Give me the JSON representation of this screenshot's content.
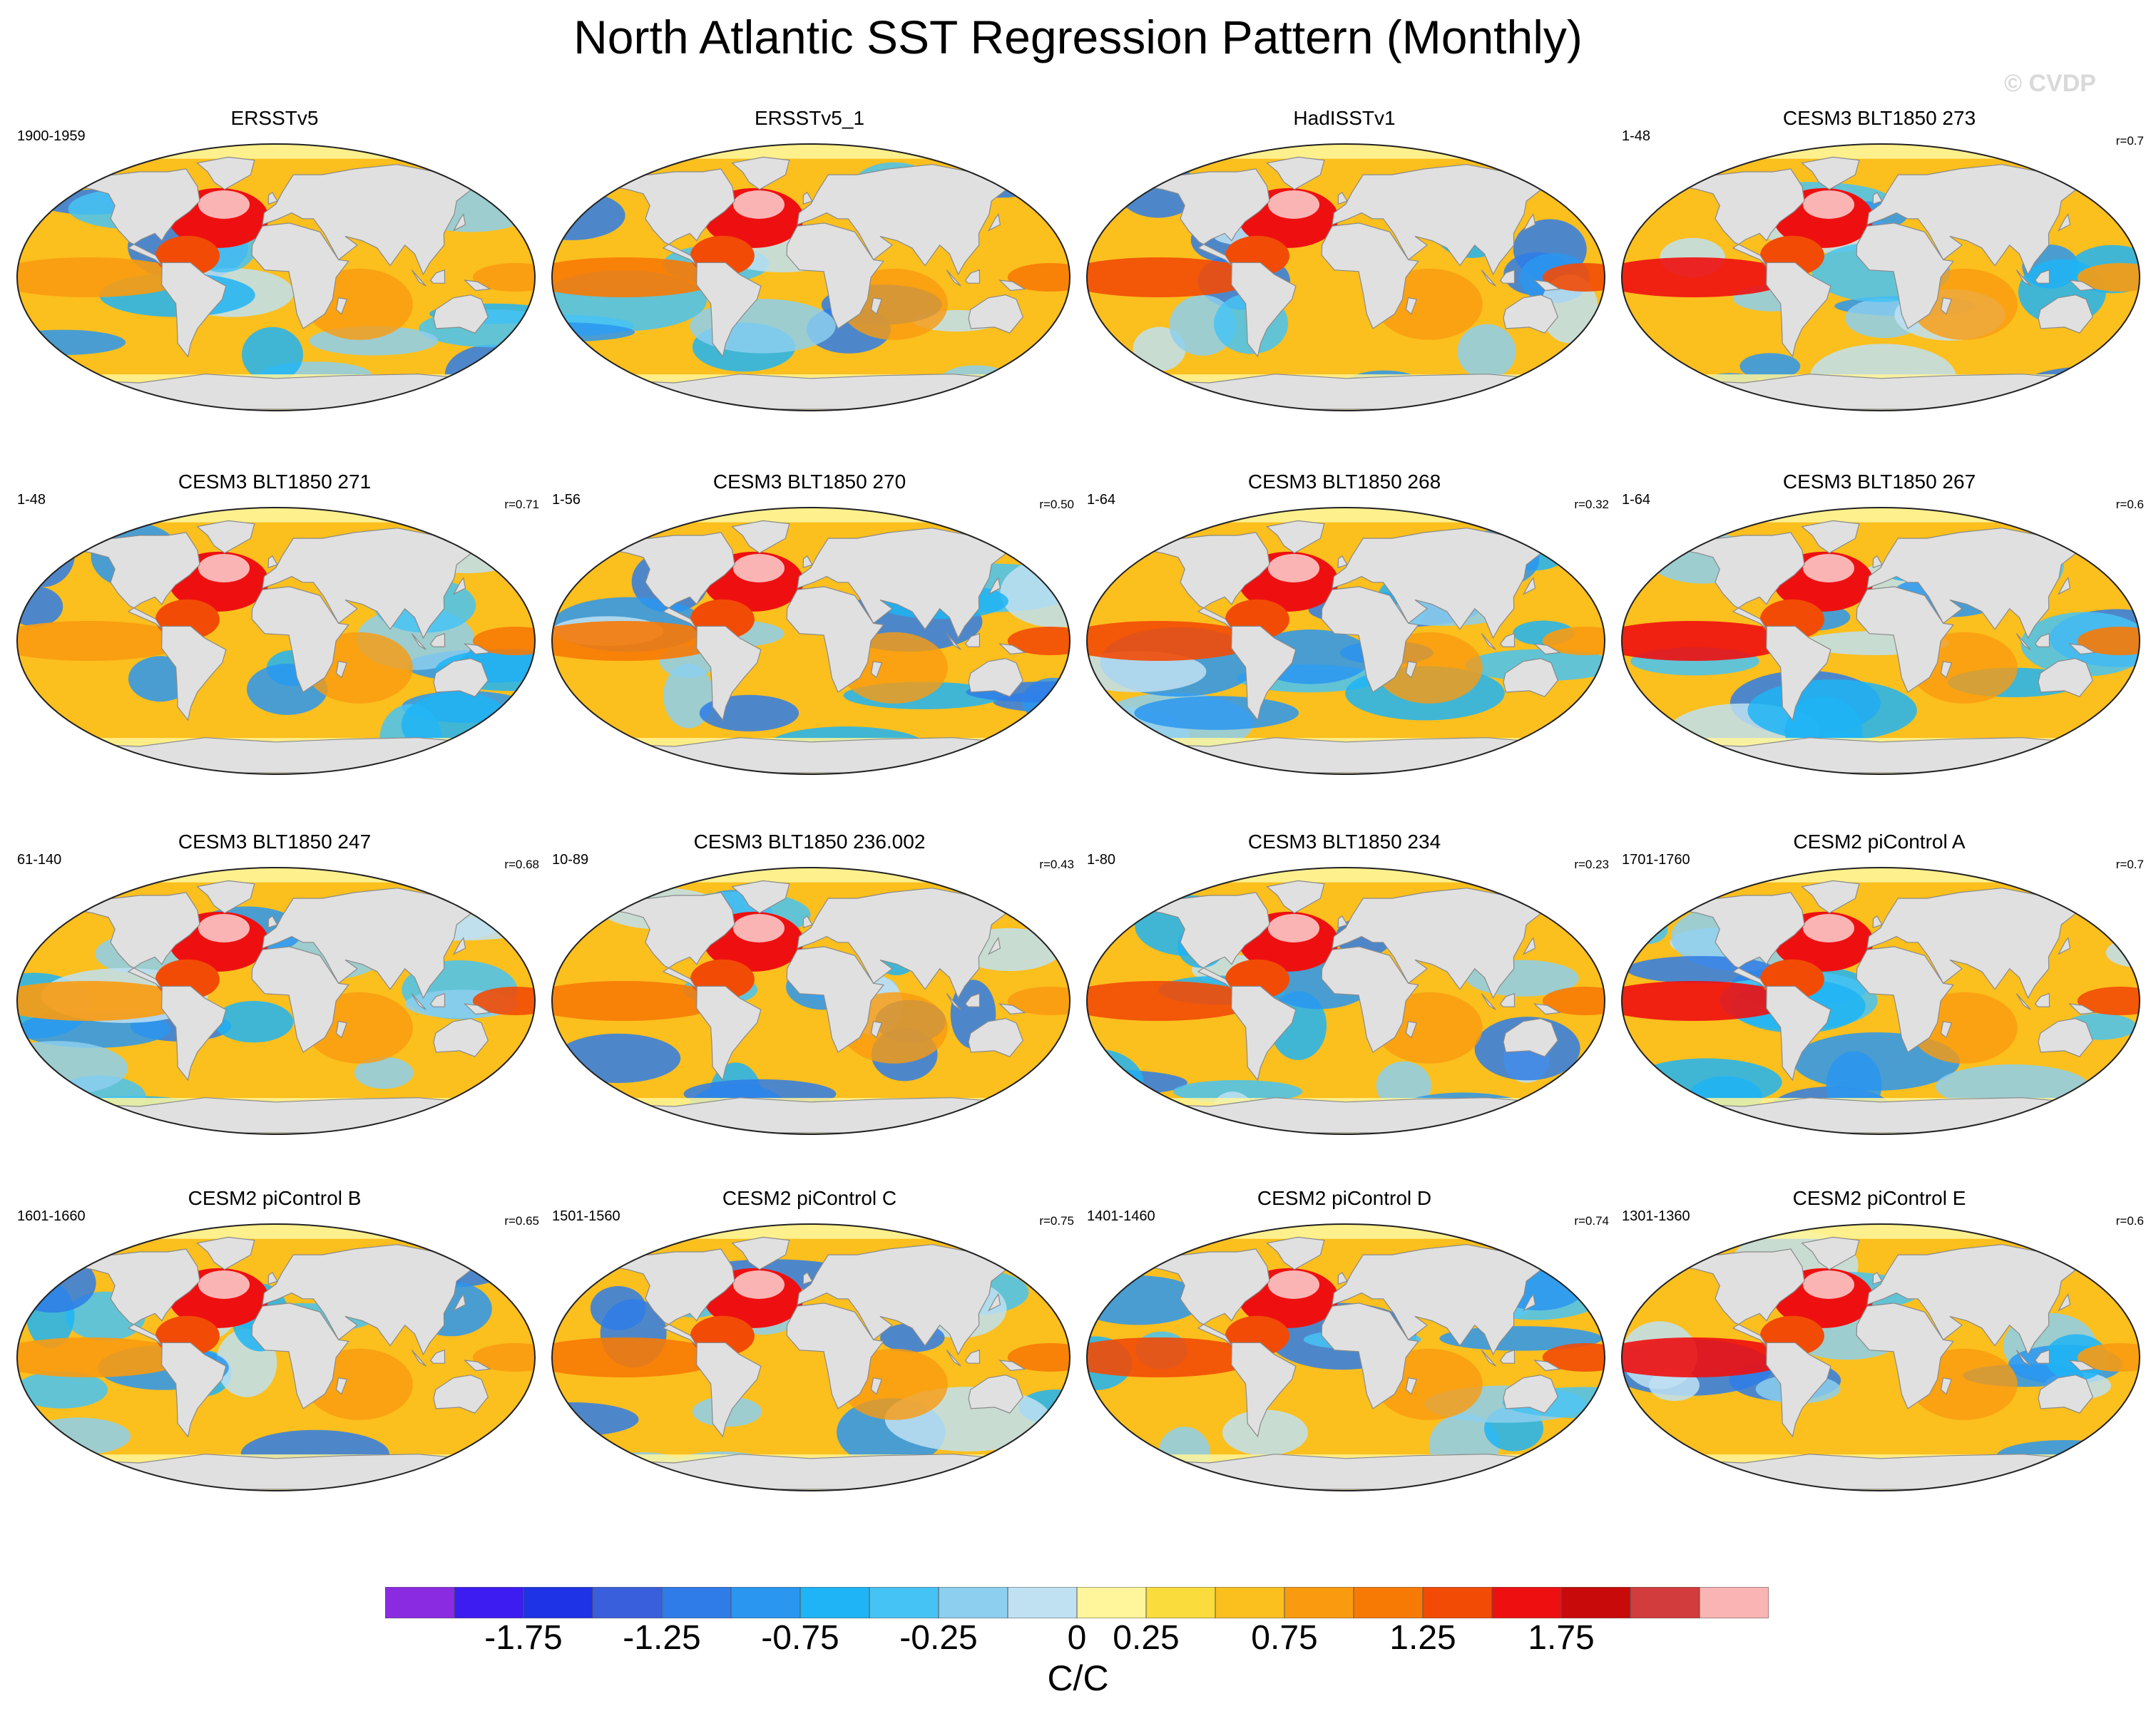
{
  "title": "North Atlantic SST Regression Pattern (Monthly)",
  "watermark": "© CVDP",
  "panels": [
    {
      "title": "ERSSTv5",
      "left": "1900-1959",
      "right": ""
    },
    {
      "title": "ERSSTv5_1",
      "left": "",
      "right": ""
    },
    {
      "title": "HadISSTv1",
      "left": "",
      "right": ""
    },
    {
      "title": "CESM3 BLT1850 273",
      "left": "1-48",
      "right": "r=0.7"
    },
    {
      "title": "CESM3 BLT1850 271",
      "left": "1-48",
      "right": "r=0.71"
    },
    {
      "title": "CESM3 BLT1850 270",
      "left": "1-56",
      "right": "r=0.50"
    },
    {
      "title": "CESM3 BLT1850 268",
      "left": "1-64",
      "right": "r=0.32"
    },
    {
      "title": "CESM3 BLT1850 267",
      "left": "1-64",
      "right": "r=0.6"
    },
    {
      "title": "CESM3 BLT1850 247",
      "left": "61-140",
      "right": "r=0.68"
    },
    {
      "title": "CESM3 BLT1850 236.002",
      "left": "10-89",
      "right": "r=0.43"
    },
    {
      "title": "CESM3 BLT1850 234",
      "left": "1-80",
      "right": "r=0.23"
    },
    {
      "title": "CESM2 piControl A",
      "left": "1701-1760",
      "right": "r=0.7"
    },
    {
      "title": "CESM2 piControl B",
      "left": "1601-1660",
      "right": "r=0.65"
    },
    {
      "title": "CESM2 piControl C",
      "left": "1501-1560",
      "right": "r=0.75"
    },
    {
      "title": "CESM2 piControl D",
      "left": "1401-1460",
      "right": "r=0.74"
    },
    {
      "title": "CESM2 piControl E",
      "left": "1301-1360",
      "right": "r=0.6"
    }
  ],
  "colorbar": {
    "colors": [
      "#8a2be2",
      "#3c1cf0",
      "#1e32e6",
      "#3a5fdc",
      "#2f7ce8",
      "#2a96f0",
      "#1eb4f5",
      "#46c3f5",
      "#8ccfef",
      "#bfe1f2",
      "#fff59a",
      "#fadc3c",
      "#fbbf1e",
      "#fa9b0f",
      "#f77a05",
      "#f24b05",
      "#ee1010",
      "#c80a0a",
      "#d23c3c",
      "#fbb4b4"
    ],
    "tick_labels": [
      "-1.75",
      "-1.25",
      "-0.75",
      "-0.25",
      "0",
      "0.25",
      "0.75",
      "1.25",
      "1.75"
    ],
    "units": "C/C"
  }
}
